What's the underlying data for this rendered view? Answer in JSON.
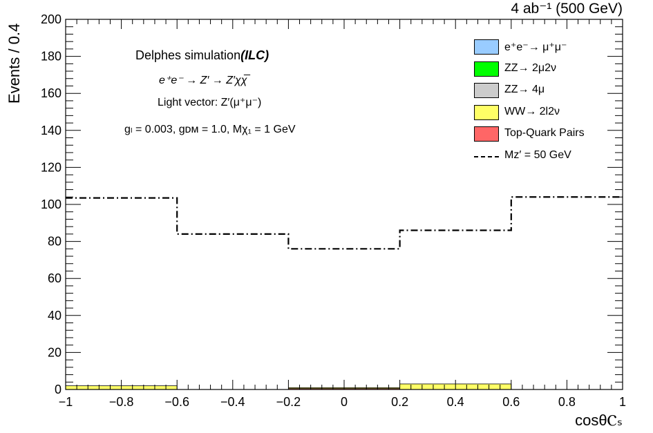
{
  "header": {
    "luminosity": "4 ab⁻¹ (500 GeV)"
  },
  "annotations": {
    "title": "Delphes simulation",
    "title_bold": "(ILC)",
    "process": "e⁺e⁻ → Z′ → Z′χχ̅",
    "model": "Light vector: Z′(μ⁺μ⁻)",
    "params": "gₗ = 0.003, gᴅᴍ = 1.0, Mχ₁ = 1 GeV"
  },
  "legend": [
    {
      "label": "e⁺e⁻→ μ⁺μ⁻",
      "color": "#99ccff",
      "kind": "box"
    },
    {
      "label": "ZZ→ 2μ2ν",
      "color": "#00ff00",
      "kind": "box"
    },
    {
      "label": "ZZ→ 4μ",
      "color": "#cccccc",
      "kind": "box"
    },
    {
      "label": "WW→ 2l2ν",
      "color": "#ffff66",
      "kind": "box"
    },
    {
      "label": "Top-Quark Pairs",
      "color": "#ff6666",
      "kind": "box"
    },
    {
      "label": "Mᴢ′ = 50 GeV",
      "color": "#000000",
      "kind": "line"
    }
  ],
  "chart_data": {
    "type": "bar",
    "title": "",
    "xlabel": "cosθⲤₛ",
    "ylabel": "Events / 0.4",
    "xlim": [
      -1,
      1
    ],
    "ylim": [
      0,
      200
    ],
    "x_ticks": [
      -1,
      -0.8,
      -0.6,
      -0.4,
      -0.2,
      0,
      0.2,
      0.4,
      0.6,
      0.8,
      1
    ],
    "x_tick_labels": [
      "−1",
      "−0.8",
      "−0.6",
      "−0.4",
      "−0.2",
      "0",
      "0.2",
      "0.4",
      "0.6",
      "0.8",
      "1"
    ],
    "y_ticks": [
      0,
      20,
      40,
      60,
      80,
      100,
      120,
      140,
      160,
      180,
      200
    ],
    "y_tick_labels": [
      "0",
      "20",
      "40",
      "60",
      "80",
      "100",
      "120",
      "140",
      "160",
      "180",
      "200"
    ],
    "bin_edges": [
      -1,
      -0.6,
      -0.2,
      0.2,
      0.6,
      1
    ],
    "stacked_series": [
      {
        "name": "Top-Quark Pairs",
        "color": "#ff6666",
        "values": [
          0,
          0,
          0.5,
          0,
          0
        ]
      },
      {
        "name": "WW→ 2l2ν",
        "color": "#ffff66",
        "values": [
          2,
          0,
          0.5,
          3,
          0
        ]
      },
      {
        "name": "ZZ→ 4μ",
        "color": "#cccccc",
        "values": [
          0,
          0,
          0,
          0,
          0
        ]
      },
      {
        "name": "ZZ→ 2μ2ν",
        "color": "#00ff00",
        "values": [
          0,
          0,
          0,
          0,
          0
        ]
      },
      {
        "name": "e⁺e⁻→ μ⁺μ⁻",
        "color": "#99ccff",
        "values": [
          0,
          0,
          0,
          0,
          0
        ]
      }
    ],
    "signal": {
      "name": "Mᴢ′ = 50 GeV",
      "style": "dash-dot",
      "values": [
        103.5,
        84,
        76,
        86,
        104
      ]
    }
  }
}
